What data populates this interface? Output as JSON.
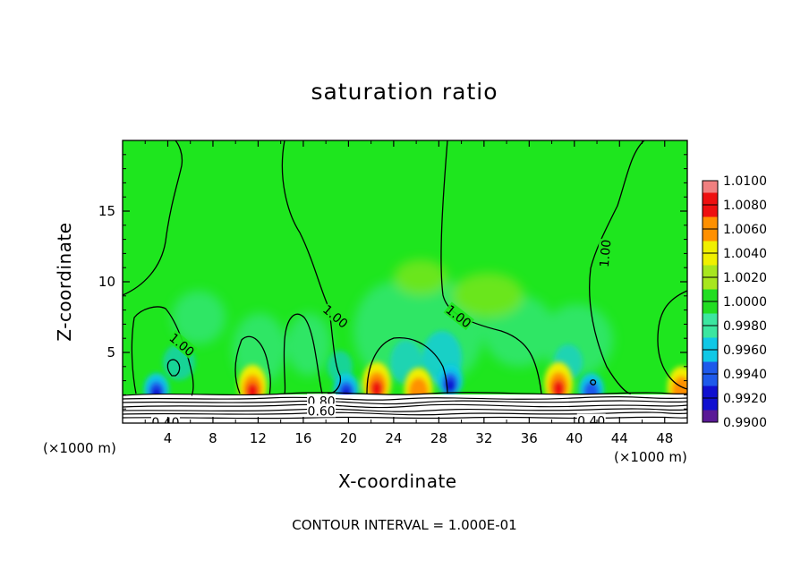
{
  "chart_data": {
    "type": "contour",
    "title": "saturation ratio",
    "xlabel": "X-coordinate",
    "ylabel": "Z-coordinate",
    "x_unit_label": "(×1000 m)",
    "footer": "CONTOUR INTERVAL = 1.000E-01",
    "xlim": [
      0,
      50
    ],
    "ylim": [
      0,
      20
    ],
    "x_ticks": [
      4,
      8,
      12,
      16,
      20,
      24,
      28,
      32,
      36,
      40,
      44,
      48
    ],
    "y_ticks": [
      5,
      10,
      15
    ],
    "colorbar": {
      "ticks": [
        "0.9900",
        "0.9920",
        "0.9940",
        "0.9960",
        "0.9980",
        "1.0000",
        "1.0020",
        "1.0040",
        "1.0060",
        "1.0080",
        "1.0100"
      ],
      "colors": [
        "#5a1a96",
        "#1010d0",
        "#1e5aeb",
        "#10c8e6",
        "#3ce6a0",
        "#22dd22",
        "#a8e61e",
        "#f0f000",
        "#ff9000",
        "#ee1010",
        "#f08080"
      ]
    },
    "field_base_color": "#1ee61e",
    "contour_labels": [
      {
        "text": "1.00",
        "x": 5.2,
        "z": 5.5,
        "angle": 40
      },
      {
        "text": "1.00",
        "x": 18.8,
        "z": 7.5,
        "angle": 40
      },
      {
        "text": "1.00",
        "x": 29.7,
        "z": 7.5,
        "angle": 38
      },
      {
        "text": "1.00",
        "x": 42.8,
        "z": 12,
        "angle": -85
      },
      {
        "text": "0.80",
        "x": 17.6,
        "z": 1.5,
        "angle": 0
      },
      {
        "text": "0.60",
        "x": 17.6,
        "z": 0.8,
        "angle": 0
      },
      {
        "text": "0.40",
        "x": 3.8,
        "z": 0.0,
        "angle": 0
      },
      {
        "text": "0.40",
        "x": 41.5,
        "z": 0.1,
        "angle": 0
      }
    ],
    "anomalies": [
      {
        "kind": "high",
        "x": 11.5,
        "z": 2.6,
        "value": 1.008
      },
      {
        "kind": "high",
        "x": 22.5,
        "z": 2.8,
        "value": 1.006
      },
      {
        "kind": "high",
        "x": 26.2,
        "z": 2.4,
        "value": 1.004
      },
      {
        "kind": "high",
        "x": 38.6,
        "z": 2.8,
        "value": 1.007
      },
      {
        "kind": "high",
        "x": 49.5,
        "z": 2.5,
        "value": 1.003
      },
      {
        "kind": "low",
        "x": 3.0,
        "z": 2.4,
        "value": 0.994
      },
      {
        "kind": "low",
        "x": 19.8,
        "z": 2.4,
        "value": 0.994
      },
      {
        "kind": "low",
        "x": 29.0,
        "z": 3.0,
        "value": 0.993
      },
      {
        "kind": "low",
        "x": 41.5,
        "z": 2.4,
        "value": 0.996
      }
    ]
  }
}
